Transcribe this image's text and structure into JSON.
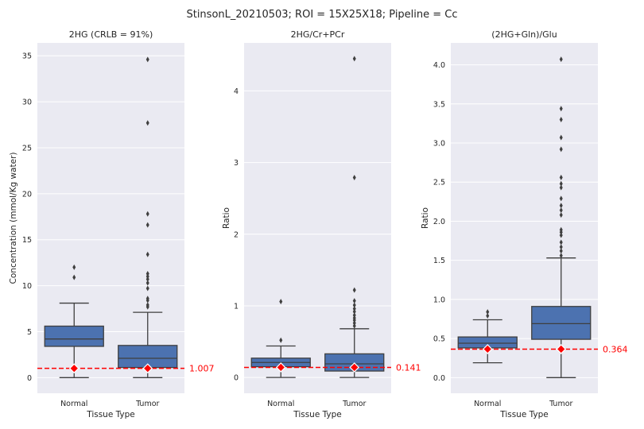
{
  "suptitle": "StinsonL_20210503; ROI = 15X25X18; Pipeline = Cc",
  "chart_data": [
    {
      "type": "box",
      "title": "2HG (CRLB = 91%)",
      "xlabel": "Tissue Type",
      "ylabel": "Concentration (mmol/Kg water)",
      "categories": [
        "Normal",
        "Tumor"
      ],
      "ylim": [
        -1.7,
        36.4
      ],
      "yticks": [
        0,
        5,
        10,
        15,
        20,
        25,
        30,
        35
      ],
      "ytick_labels": [
        "0",
        "5",
        "10",
        "15",
        "20",
        "25",
        "30",
        "35"
      ],
      "boxes": [
        {
          "whislo": 0.0,
          "q1": 3.4,
          "med": 4.2,
          "q3": 5.6,
          "whishi": 8.1,
          "fliers": [
            10.9,
            12.0
          ]
        },
        {
          "whislo": 0.0,
          "q1": 1.1,
          "med": 2.1,
          "q3": 3.5,
          "whishi": 7.1,
          "fliers": [
            7.7,
            7.9,
            8.4,
            8.6,
            9.7,
            10.3,
            10.7,
            11.0,
            11.3,
            13.4,
            16.6,
            17.8,
            27.7,
            34.6
          ]
        }
      ],
      "reference_value": 1.007,
      "reference_label": "1.007"
    },
    {
      "type": "box",
      "title": "2HG/Cr+PCr",
      "xlabel": "Tissue Type",
      "ylabel": "Ratio",
      "categories": [
        "Normal",
        "Tumor"
      ],
      "ylim": [
        -0.22,
        4.67
      ],
      "yticks": [
        0,
        1,
        2,
        3,
        4
      ],
      "ytick_labels": [
        "0",
        "1",
        "2",
        "3",
        "4"
      ],
      "boxes": [
        {
          "whislo": 0.0,
          "q1": 0.15,
          "med": 0.21,
          "q3": 0.27,
          "whishi": 0.44,
          "fliers": [
            0.52,
            1.06
          ]
        },
        {
          "whislo": 0.0,
          "q1": 0.09,
          "med": 0.19,
          "q3": 0.33,
          "whishi": 0.68,
          "fliers": [
            0.72,
            0.76,
            0.8,
            0.83,
            0.87,
            0.92,
            0.96,
            1.01,
            1.07,
            1.22,
            2.79,
            4.45
          ]
        }
      ],
      "reference_value": 0.141,
      "reference_label": "0.141"
    },
    {
      "type": "box",
      "title": "(2HG+Gln)/Glu",
      "xlabel": "Tissue Type",
      "ylabel": "Ratio",
      "categories": [
        "Normal",
        "Tumor"
      ],
      "ylim": [
        -0.2,
        4.28
      ],
      "yticks": [
        0,
        0.5,
        1,
        1.5,
        2,
        2.5,
        3,
        3.5,
        4
      ],
      "ytick_labels": [
        "0.0",
        "0.5",
        "1.0",
        "1.5",
        "2.0",
        "2.5",
        "3.0",
        "3.5",
        "4.0"
      ],
      "boxes": [
        {
          "whislo": 0.19,
          "q1": 0.38,
          "med": 0.44,
          "q3": 0.52,
          "whishi": 0.74,
          "fliers": [
            0.79,
            0.84
          ]
        },
        {
          "whislo": 0.0,
          "q1": 0.49,
          "med": 0.69,
          "q3": 0.91,
          "whishi": 1.53,
          "fliers": [
            1.56,
            1.62,
            1.67,
            1.73,
            1.82,
            1.86,
            1.89,
            2.08,
            2.14,
            2.2,
            2.29,
            2.43,
            2.48,
            2.56,
            2.92,
            3.07,
            3.3,
            3.44,
            4.07
          ]
        }
      ],
      "reference_value": 0.364,
      "reference_label": "0.364"
    }
  ]
}
